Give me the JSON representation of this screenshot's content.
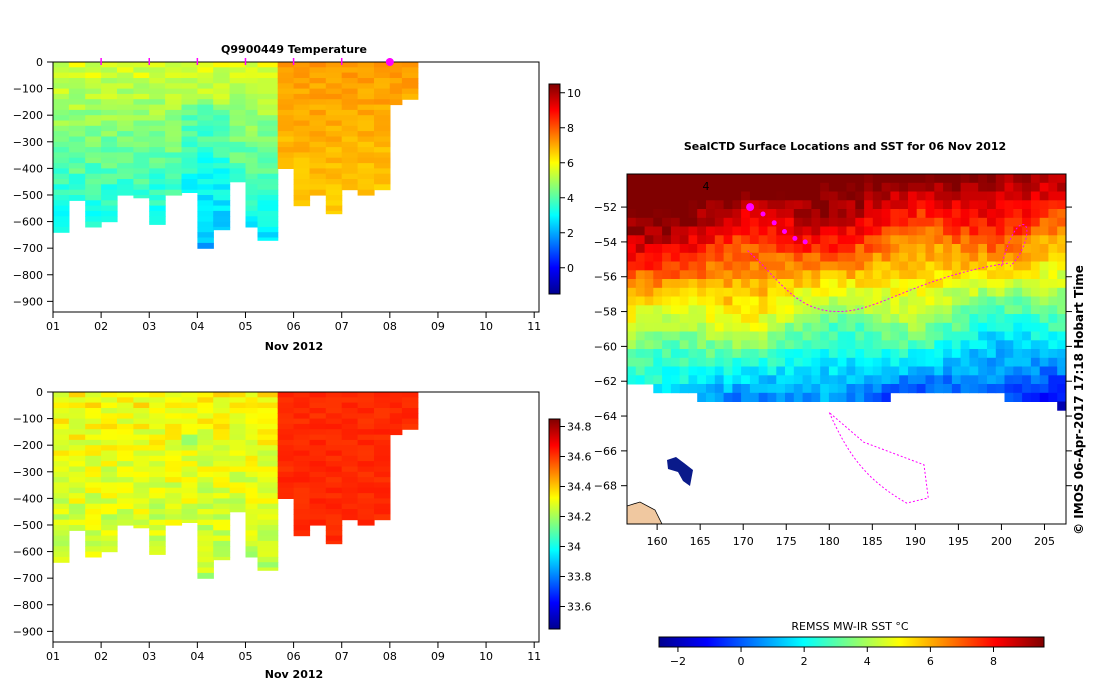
{
  "chart_data": [
    {
      "type": "heatmap",
      "id": "temperature-section",
      "title": "Q9900449  Temperature",
      "xlabel": "Nov 2012",
      "x_tick_labels": [
        "01",
        "02",
        "03",
        "04",
        "05",
        "06",
        "07",
        "08",
        "09",
        "10",
        "11"
      ],
      "xlim": [
        1,
        11.1
      ],
      "y_tick_labels": [
        "0",
        "−100",
        "−200",
        "−300",
        "−400",
        "−500",
        "−600",
        "−700",
        "−800",
        "−900"
      ],
      "y_ticks": [
        0,
        -100,
        -200,
        -300,
        -400,
        -500,
        -600,
        -700,
        -800,
        -900
      ],
      "ylim": [
        -940,
        0
      ],
      "profile_days": [
        1.0,
        1.33,
        1.67,
        2.0,
        2.33,
        2.67,
        3.0,
        3.33,
        3.67,
        4.0,
        4.33,
        4.67,
        5.0,
        5.25,
        5.67,
        6.0,
        6.33,
        6.67,
        7.0,
        7.33,
        7.67,
        8.0,
        8.25
      ],
      "profile_max_depth": [
        640,
        520,
        620,
        600,
        500,
        510,
        610,
        500,
        490,
        700,
        630,
        450,
        620,
        670,
        400,
        540,
        500,
        570,
        480,
        500,
        480,
        160,
        140
      ],
      "value_range": [
        -1.5,
        10.5
      ],
      "colorbar_ticks": [
        10,
        8,
        6,
        4,
        2,
        0
      ],
      "surface_markers_days": [
        2,
        3,
        4,
        5,
        6,
        7,
        8
      ],
      "current_marker_day": 8
    },
    {
      "type": "heatmap",
      "id": "salinity-section",
      "title": "",
      "xlabel": "Nov 2012",
      "x_tick_labels": [
        "01",
        "02",
        "03",
        "04",
        "05",
        "06",
        "07",
        "08",
        "09",
        "10",
        "11"
      ],
      "xlim": [
        1,
        11.1
      ],
      "y_tick_labels": [
        "0",
        "−100",
        "−200",
        "−300",
        "−400",
        "−500",
        "−600",
        "−700",
        "−800",
        "−900"
      ],
      "y_ticks": [
        0,
        -100,
        -200,
        -300,
        -400,
        -500,
        -600,
        -700,
        -800,
        -900
      ],
      "ylim": [
        -940,
        0
      ],
      "profile_days": [
        1.0,
        1.33,
        1.67,
        2.0,
        2.33,
        2.67,
        3.0,
        3.33,
        3.67,
        4.0,
        4.33,
        4.67,
        5.0,
        5.25,
        5.67,
        6.0,
        6.33,
        6.67,
        7.0,
        7.33,
        7.67,
        8.0,
        8.25
      ],
      "profile_max_depth": [
        640,
        520,
        620,
        600,
        500,
        510,
        610,
        500,
        490,
        700,
        630,
        450,
        620,
        670,
        400,
        540,
        500,
        570,
        480,
        500,
        480,
        160,
        140
      ],
      "value_range": [
        33.45,
        34.85
      ],
      "colorbar_ticks": [
        "34.8",
        "34.6",
        "34.4",
        "34.2",
        "34",
        "33.8",
        "33.6"
      ],
      "colorbar_tick_values": [
        34.8,
        34.6,
        34.4,
        34.2,
        34.0,
        33.8,
        33.6
      ]
    },
    {
      "type": "heatmap",
      "id": "sst-map",
      "title": "SealCTD Surface Locations and SST for 06 Nov 2012",
      "x_tick_labels": [
        "160",
        "165",
        "170",
        "175",
        "180",
        "185",
        "190",
        "195",
        "200",
        "205"
      ],
      "x_ticks": [
        160,
        165,
        170,
        175,
        180,
        185,
        190,
        195,
        200,
        205
      ],
      "xlim": [
        156.5,
        207.5
      ],
      "y_tick_labels": [
        "−52",
        "−54",
        "−56",
        "−58",
        "−60",
        "−62",
        "−64",
        "−66",
        "−68"
      ],
      "y_ticks": [
        -52,
        -54,
        -56,
        -58,
        -60,
        -62,
        -64,
        -66,
        -68
      ],
      "ylim": [
        -70.2,
        -50.1
      ],
      "track_points": [
        [
          170.8,
          -52.0
        ],
        [
          172.3,
          -52.4
        ],
        [
          173.6,
          -52.9
        ],
        [
          174.8,
          -53.4
        ],
        [
          176.0,
          -53.8
        ],
        [
          177.2,
          -54.0
        ]
      ],
      "current_location": [
        170.8,
        -52.0
      ],
      "map_annotation": "4"
    }
  ],
  "sst_colorbar": {
    "label": "REMSS MW-IR SST °C",
    "tick_labels": [
      "−2",
      "0",
      "2",
      "4",
      "6",
      "8"
    ],
    "ticks": [
      -2,
      0,
      2,
      4,
      6,
      8
    ],
    "range": [
      -2.6,
      9.6
    ]
  },
  "credit": "©  IMOS 06-Apr-2017 17:18 Hobart Time",
  "colors": {
    "marker": "#ff00ff",
    "axis": "#000000",
    "land": "#f0c8a0",
    "ice": "#ffffff"
  }
}
